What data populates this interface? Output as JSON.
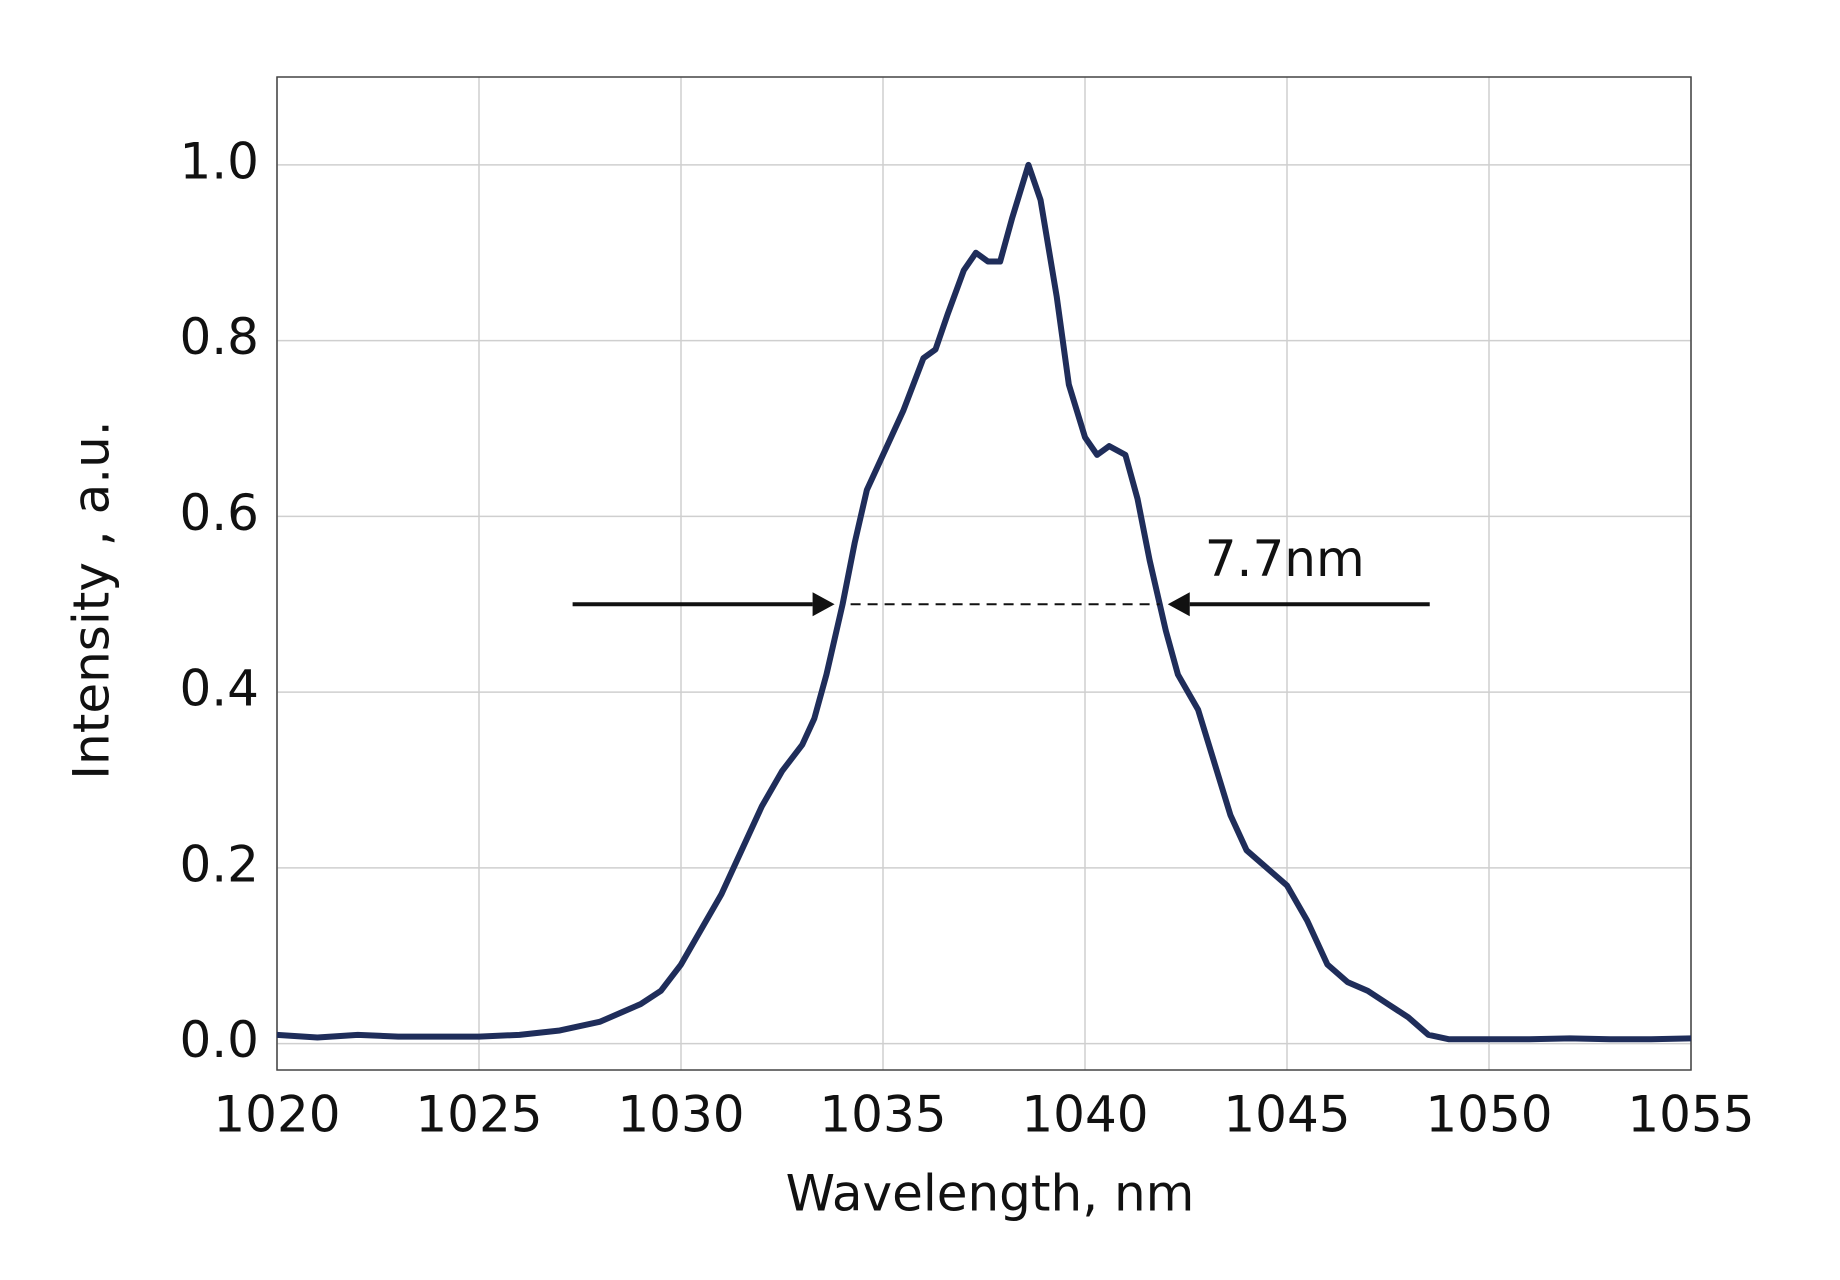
{
  "chart_data": {
    "type": "line",
    "xlabel": "Wavelength, nm",
    "ylabel": "Intensity , a.u.",
    "annotation": "7.7nm",
    "x": [
      1020,
      1021,
      1022,
      1023,
      1024,
      1025,
      1026,
      1027,
      1027.5,
      1028,
      1028.5,
      1029,
      1029.5,
      1030,
      1030.5,
      1031,
      1031.5,
      1032,
      1032.5,
      1033,
      1033.3,
      1033.6,
      1034,
      1034.3,
      1034.6,
      1035,
      1035.5,
      1036,
      1036.3,
      1036.6,
      1037,
      1037.3,
      1037.6,
      1037.9,
      1038.2,
      1038.6,
      1038.9,
      1039.3,
      1039.6,
      1040,
      1040.3,
      1040.6,
      1041,
      1041.3,
      1041.6,
      1042,
      1042.3,
      1042.8,
      1043.2,
      1043.6,
      1044,
      1044.5,
      1045,
      1045.5,
      1046,
      1046.5,
      1047,
      1047.5,
      1048,
      1048.5,
      1049,
      1050,
      1051,
      1052,
      1053,
      1054,
      1055
    ],
    "series": [
      {
        "color": "#1f2d5a",
        "values": [
          0.01,
          0.007,
          0.01,
          0.008,
          0.008,
          0.008,
          0.01,
          0.015,
          0.02,
          0.025,
          0.035,
          0.045,
          0.06,
          0.09,
          0.13,
          0.17,
          0.22,
          0.27,
          0.31,
          0.34,
          0.37,
          0.42,
          0.5,
          0.57,
          0.63,
          0.67,
          0.72,
          0.78,
          0.79,
          0.83,
          0.88,
          0.9,
          0.89,
          0.89,
          0.94,
          1.0,
          0.96,
          0.85,
          0.75,
          0.69,
          0.67,
          0.68,
          0.67,
          0.62,
          0.55,
          0.47,
          0.42,
          0.38,
          0.32,
          0.26,
          0.22,
          0.2,
          0.18,
          0.14,
          0.09,
          0.07,
          0.06,
          0.045,
          0.03,
          0.01,
          0.005,
          0.005,
          0.005,
          0.006,
          0.005,
          0.005,
          0.006
        ]
      }
    ],
    "xlim": [
      1020,
      1055
    ],
    "xticks": [
      1020,
      1025,
      1030,
      1035,
      1040,
      1045,
      1050,
      1055
    ],
    "ylim": [
      -0.03,
      1.1
    ],
    "yticks": [
      {
        "value": 0,
        "label": "0.0"
      },
      {
        "value": 0.2,
        "label": "0.2"
      },
      {
        "value": 0.4,
        "label": "0.4"
      },
      {
        "value": 0.6,
        "label": "0.6"
      },
      {
        "value": 0.8,
        "label": "0.8"
      },
      {
        "value": 1,
        "label": "1.0"
      }
    ],
    "grid": true
  }
}
